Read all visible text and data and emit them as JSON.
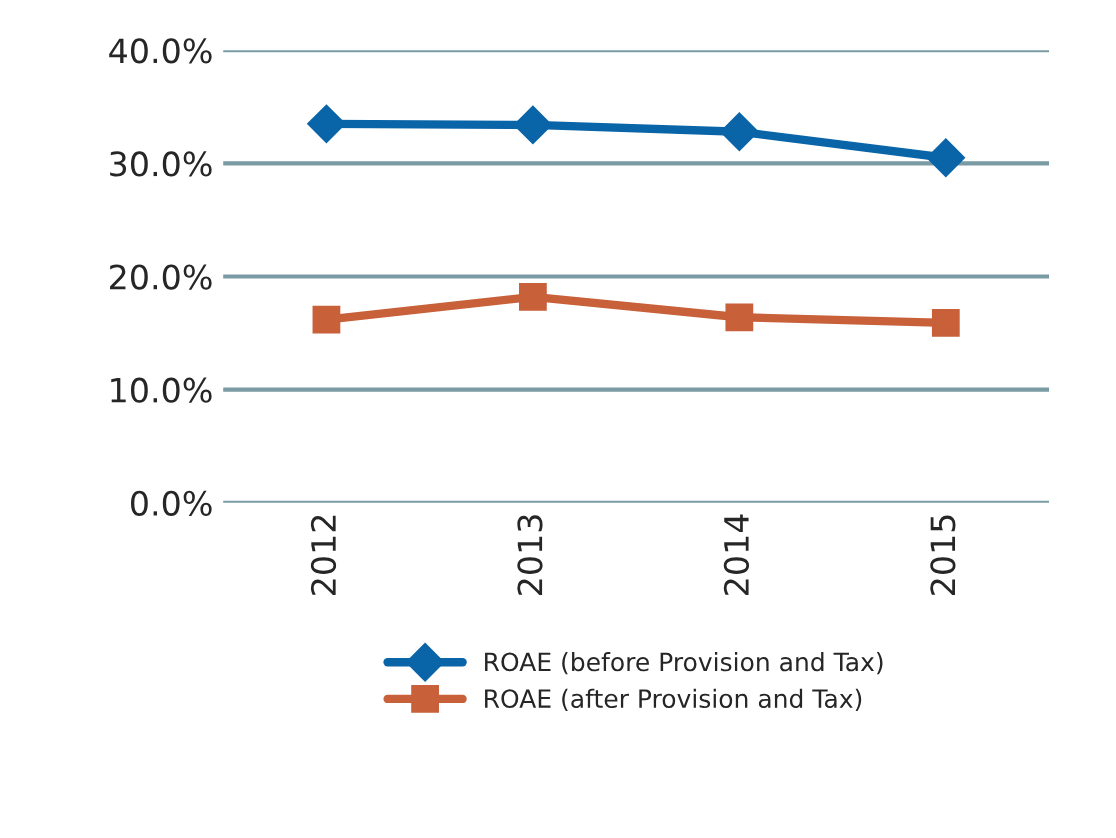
{
  "chart_data": {
    "type": "line",
    "categories": [
      "2012",
      "2013",
      "2014",
      "2015"
    ],
    "series": [
      {
        "name": "ROAE (before Provision and Tax)",
        "color": "#0a64a8",
        "values": [
          33.5,
          33.4,
          32.8,
          30.5
        ],
        "marker": "diamond"
      },
      {
        "name": "ROAE (after Provision and Tax)",
        "color": "#c8603a",
        "values": [
          16.2,
          18.2,
          16.4,
          15.9
        ],
        "marker": "square"
      }
    ],
    "ylim": [
      0,
      40
    ],
    "yticks": [
      {
        "value": 0,
        "label": "0.0%"
      },
      {
        "value": 10,
        "label": "10.0%"
      },
      {
        "value": 20,
        "label": "20.0%"
      },
      {
        "value": 30,
        "label": "30.0%"
      },
      {
        "value": 40,
        "label": "40.0%"
      }
    ],
    "grid": "y",
    "legend": "bottom",
    "line_style": "solid"
  }
}
